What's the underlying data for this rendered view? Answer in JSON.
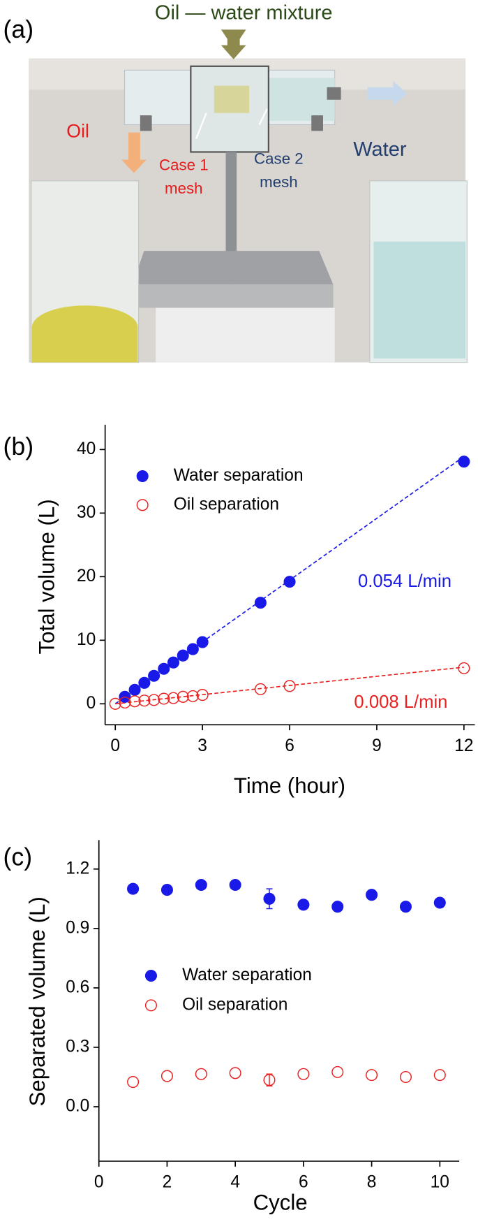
{
  "panel_a": {
    "panel_label": "(a)",
    "title": "Oil — water mixture",
    "oil": "Oil",
    "case1": [
      "Case 1",
      "mesh"
    ],
    "case2": [
      "Case 2",
      "mesh"
    ],
    "water": "Water"
  },
  "chart_data": [
    {
      "type": "scatter",
      "panel_label": "(b)",
      "x_label": "Time (hour)",
      "y_label": "Total volume (L)",
      "xlim": [
        -0.35,
        12.375
      ],
      "xticks": [
        0,
        3,
        6,
        9,
        12
      ],
      "ylim": [
        -3.3,
        43.9
      ],
      "yticks": [
        0,
        10,
        20,
        30,
        40
      ],
      "series": [
        {
          "name": "Water separation",
          "color": "#1a1ae8",
          "filled": true,
          "x": [
            0.33,
            0.67,
            1,
            1.33,
            1.67,
            2,
            2.33,
            2.67,
            3,
            5,
            6,
            12
          ],
          "values": [
            1.1,
            2.2,
            3.3,
            4.4,
            5.5,
            6.5,
            7.6,
            8.6,
            9.7,
            15.9,
            19.2,
            38.1
          ]
        },
        {
          "name": "Oil separation",
          "color": "#e82020",
          "filled": false,
          "x": [
            0,
            0.33,
            0.67,
            1,
            1.33,
            1.67,
            2,
            2.33,
            2.67,
            3,
            5,
            6,
            12
          ],
          "values": [
            0,
            0.2,
            0.4,
            0.5,
            0.6,
            0.8,
            0.9,
            1.1,
            1.2,
            1.4,
            2.3,
            2.8,
            5.6
          ]
        }
      ],
      "fits": [
        {
          "color": "#1a1ae8",
          "x": [
            0,
            12
          ],
          "values": [
            0,
            38.9
          ]
        },
        {
          "color": "#e82020",
          "x": [
            0,
            12
          ],
          "values": [
            0,
            5.76
          ]
        }
      ],
      "annotations": [
        {
          "text": "0.054 L/min",
          "color": "#1a1ae8"
        },
        {
          "text": "0.008 L/min",
          "color": "#e82020"
        }
      ]
    },
    {
      "type": "scatter",
      "panel_label": "(c)",
      "x_label": "Cycle",
      "y_label": "Separated volume (L)",
      "xlim": [
        0,
        10.57
      ],
      "xticks": [
        0,
        2,
        4,
        6,
        8,
        10
      ],
      "ylim": [
        -0.275,
        1.346
      ],
      "yticks": [
        {
          "value": 0,
          "label": "0.0"
        },
        0.3,
        0.6,
        0.9,
        1.2
      ],
      "series": [
        {
          "name": "Water separation",
          "color": "#1a1ae8",
          "filled": true,
          "x": [
            1,
            2,
            3,
            4,
            5,
            6,
            7,
            8,
            9,
            10
          ],
          "values": [
            1.1,
            1.095,
            1.12,
            1.12,
            1.05,
            1.02,
            1.01,
            1.07,
            1.01,
            1.03
          ],
          "errors": [
            null,
            null,
            null,
            null,
            0.05,
            null,
            null,
            null,
            null,
            null
          ]
        },
        {
          "name": "Oil separation",
          "color": "#e82020",
          "filled": false,
          "x": [
            1,
            2,
            3,
            4,
            5,
            6,
            7,
            8,
            9,
            10
          ],
          "values": [
            0.125,
            0.155,
            0.165,
            0.17,
            0.135,
            0.165,
            0.175,
            0.16,
            0.15,
            0.16
          ],
          "errors": [
            null,
            null,
            null,
            null,
            0.03,
            null,
            null,
            null,
            null,
            null
          ]
        }
      ]
    }
  ]
}
